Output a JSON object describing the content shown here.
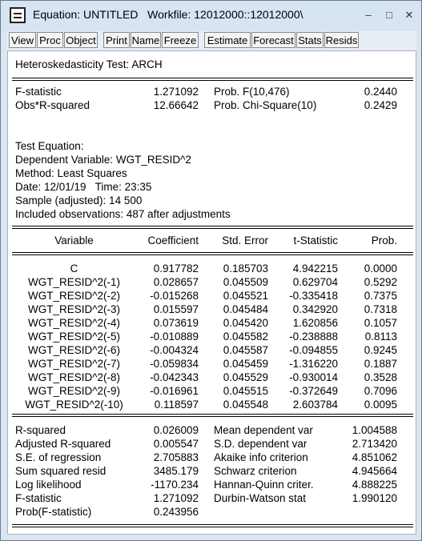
{
  "window": {
    "title": "Equation: UNTITLED   Workfile: 12012000::12012000\\",
    "controls": [
      "–",
      "□",
      "✕"
    ]
  },
  "toolbar": [
    "View",
    "Proc",
    "Object",
    "Print",
    "Name",
    "Freeze",
    "Estimate",
    "Forecast",
    "Stats",
    "Resids"
  ],
  "header": {
    "test_title": "Heteroskedasticity Test: ARCH",
    "stats": [
      {
        "label": "F-statistic",
        "value": "1.271092",
        "prob_label": "Prob. F(10,476)",
        "prob": "0.2440"
      },
      {
        "label": "Obs*R-squared",
        "value": "12.66642",
        "prob_label": "Prob. Chi-Square(10)",
        "prob": "0.2429"
      }
    ]
  },
  "info": [
    "Test Equation:",
    "Dependent Variable: WGT_RESID^2",
    "Method: Least Squares",
    "Date: 12/01/19   Time: 23:35",
    "Sample (adjusted): 14 500",
    "Included observations: 487 after adjustments"
  ],
  "coef_table": {
    "headers": [
      "Variable",
      "Coefficient",
      "Std. Error",
      "t-Statistic",
      "Prob."
    ],
    "rows": [
      [
        "C",
        "0.917782",
        "0.185703",
        "4.942215",
        "0.0000"
      ],
      [
        "WGT_RESID^2(-1)",
        "0.028657",
        "0.045509",
        "0.629704",
        "0.5292"
      ],
      [
        "WGT_RESID^2(-2)",
        "-0.015268",
        "0.045521",
        "-0.335418",
        "0.7375"
      ],
      [
        "WGT_RESID^2(-3)",
        "0.015597",
        "0.045484",
        "0.342920",
        "0.7318"
      ],
      [
        "WGT_RESID^2(-4)",
        "0.073619",
        "0.045420",
        "1.620856",
        "0.1057"
      ],
      [
        "WGT_RESID^2(-5)",
        "-0.010889",
        "0.045582",
        "-0.238888",
        "0.8113"
      ],
      [
        "WGT_RESID^2(-6)",
        "-0.004324",
        "0.045587",
        "-0.094855",
        "0.9245"
      ],
      [
        "WGT_RESID^2(-7)",
        "-0.059834",
        "0.045459",
        "-1.316220",
        "0.1887"
      ],
      [
        "WGT_RESID^2(-8)",
        "-0.042343",
        "0.045529",
        "-0.930014",
        "0.3528"
      ],
      [
        "WGT_RESID^2(-9)",
        "-0.016961",
        "0.045515",
        "-0.372649",
        "0.7096"
      ],
      [
        "WGT_RESID^2(-10)",
        "0.118597",
        "0.045548",
        "2.603784",
        "0.0095"
      ]
    ]
  },
  "summary": [
    [
      "R-squared",
      "0.026009",
      "Mean dependent var",
      "1.004588"
    ],
    [
      "Adjusted R-squared",
      "0.005547",
      "S.D. dependent var",
      "2.713420"
    ],
    [
      "S.E. of regression",
      "2.705883",
      "Akaike info criterion",
      "4.851062"
    ],
    [
      "Sum squared resid",
      "3485.179",
      "Schwarz criterion",
      "4.945664"
    ],
    [
      "Log likelihood",
      "-1170.234",
      "Hannan-Quinn criter.",
      "4.888225"
    ],
    [
      "F-statistic",
      "1.271092",
      "Durbin-Watson stat",
      "1.990120"
    ],
    [
      "Prob(F-statistic)",
      "0.243956",
      "",
      ""
    ]
  ]
}
